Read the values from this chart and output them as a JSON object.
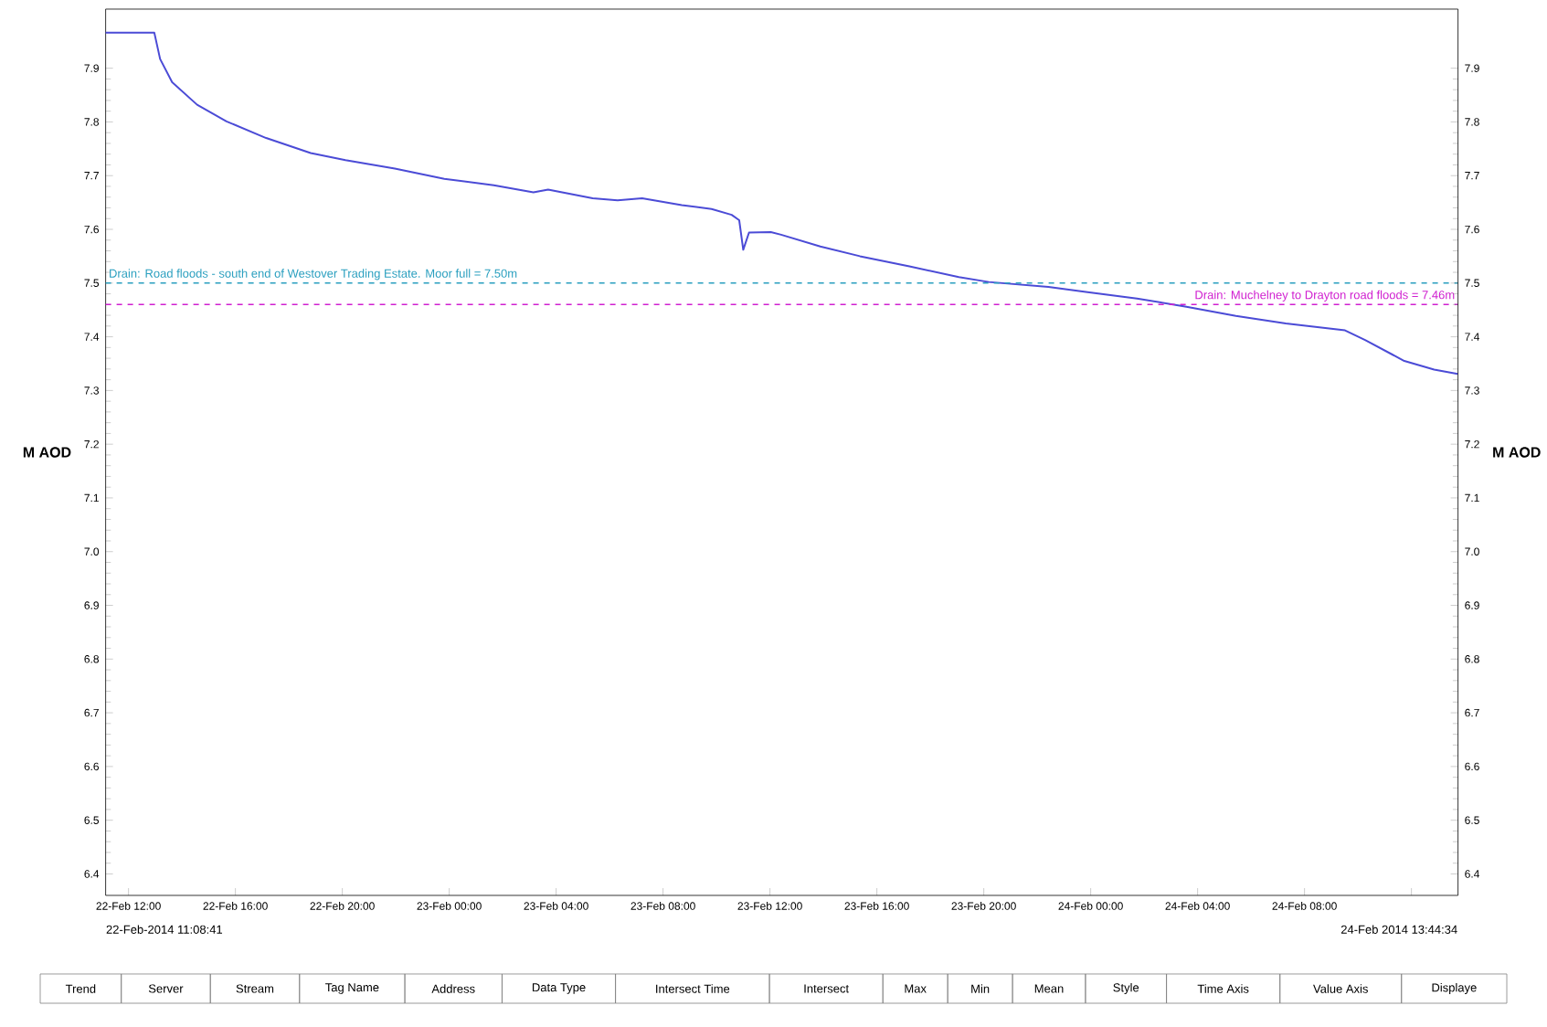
{
  "chart_data": {
    "type": "line",
    "x": [
      "2014-02-22T11:08:41",
      "2014-02-22T12:58",
      "2014-02-22T13:11",
      "2014-02-22T13:38",
      "2014-02-22T14:34",
      "2014-02-22T15:40",
      "2014-02-22T17:09",
      "2014-02-22T18:49",
      "2014-02-22T20:07",
      "2014-02-22T21:58",
      "2014-02-22T23:49",
      "2014-02-23T01:40",
      "2014-02-23T03:09",
      "2014-02-23T03:42",
      "2014-02-23T05:22",
      "2014-02-23T06:18",
      "2014-02-23T07:13",
      "2014-02-23T08:42",
      "2014-02-23T09:49",
      "2014-02-23T10:34",
      "2014-02-23T10:51",
      "2014-02-23T11:00",
      "2014-02-23T11:13",
      "2014-02-23T12:02",
      "2014-02-23T12:25",
      "2014-02-23T13:53",
      "2014-02-23T15:22",
      "2014-02-23T17:13",
      "2014-02-23T19:04",
      "2014-02-23T20:11",
      "2014-02-23T22:25",
      "2014-02-23T23:53",
      "2014-02-24T01:44",
      "2014-02-24T03:35",
      "2014-02-24T05:26",
      "2014-02-24T07:18",
      "2014-02-24T09:31",
      "2014-02-24T10:16",
      "2014-02-24T11:44",
      "2014-02-24T12:51",
      "2014-02-24T13:44"
    ],
    "series": [
      {
        "color": "#4b4bd6",
        "values": [
          7.966,
          7.966,
          7.917,
          7.874,
          7.832,
          7.801,
          7.77,
          7.742,
          7.729,
          7.713,
          7.694,
          7.682,
          7.669,
          7.674,
          7.658,
          7.654,
          7.658,
          7.645,
          7.638,
          7.627,
          7.617,
          7.562,
          7.594,
          7.595,
          7.59,
          7.568,
          7.55,
          7.531,
          7.511,
          7.502,
          7.493,
          7.483,
          7.471,
          7.456,
          7.439,
          7.425,
          7.412,
          7.394,
          7.355,
          7.339,
          7.331
        ]
      }
    ],
    "xlim": [
      "2014-02-22T11:08:41",
      "2014-02-24T13:44:34"
    ],
    "xticks": [
      {
        "value": "2014-02-22T12:00",
        "label": "22-Feb 12:00"
      },
      {
        "value": "2014-02-22T16:00",
        "label": "22-Feb 16:00"
      },
      {
        "value": "2014-02-22T20:00",
        "label": "22-Feb 20:00"
      },
      {
        "value": "2014-02-23T00:00",
        "label": "23-Feb 00:00"
      },
      {
        "value": "2014-02-23T04:00",
        "label": "23-Feb 04:00"
      },
      {
        "value": "2014-02-23T08:00",
        "label": "23-Feb 08:00"
      },
      {
        "value": "2014-02-23T12:00",
        "label": "23-Feb 12:00"
      },
      {
        "value": "2014-02-23T16:00",
        "label": "23-Feb 16:00"
      },
      {
        "value": "2014-02-23T20:00",
        "label": "23-Feb 20:00"
      },
      {
        "value": "2014-02-24T00:00",
        "label": "24-Feb 00:00"
      },
      {
        "value": "2014-02-24T04:00",
        "label": "24-Feb 04:00"
      },
      {
        "value": "2014-02-24T08:00",
        "label": "24-Feb 08:00"
      },
      {
        "value": "2014-02-24T12:00",
        "label": null
      }
    ],
    "ylim": [
      6.36,
      8.01
    ],
    "yticks": [
      6.4,
      6.5,
      6.6,
      6.7,
      6.8,
      6.9,
      {
        "value": 7.0,
        "label": "7.0"
      },
      7.1,
      7.2,
      7.3,
      7.4,
      7.5,
      7.6,
      7.7,
      7.8,
      7.9
    ],
    "y2lim": [
      6.36,
      8.01
    ],
    "y2ticks": [
      6.4,
      6.5,
      6.6,
      6.7,
      6.8,
      6.9,
      {
        "value": 7.0,
        "label": "7.0"
      },
      7.1,
      7.2,
      7.3,
      7.4,
      7.5,
      7.6,
      7.7,
      7.8,
      7.9
    ],
    "ylabel": "M AOD",
    "y2label": "M AOD",
    "ref_lines": [
      {
        "axis": "y",
        "value": 7.5,
        "label": "Drain: Road floods - south end of Westover Trading Estate.  Moor full = 7.50m",
        "color": "#2a9fbf",
        "line_style": "dashed"
      },
      {
        "axis": "y",
        "value": 7.46,
        "label": "Drain: Muchelney to Drayton road floods = 7.46m",
        "color": "#d020d0",
        "line_style": "dashed"
      }
    ],
    "annotations": [
      "22-Feb-2014 11:08:41",
      "24-Feb 2014 13:44:34",
      "Trend",
      "Server",
      "Stream",
      "Tag Name",
      "Address",
      "Data Type",
      "Intersect Time",
      "Intersect",
      "Max",
      "Min",
      "Mean",
      "Style",
      "Time Axis",
      "Value Axis",
      "Displaye"
    ]
  }
}
